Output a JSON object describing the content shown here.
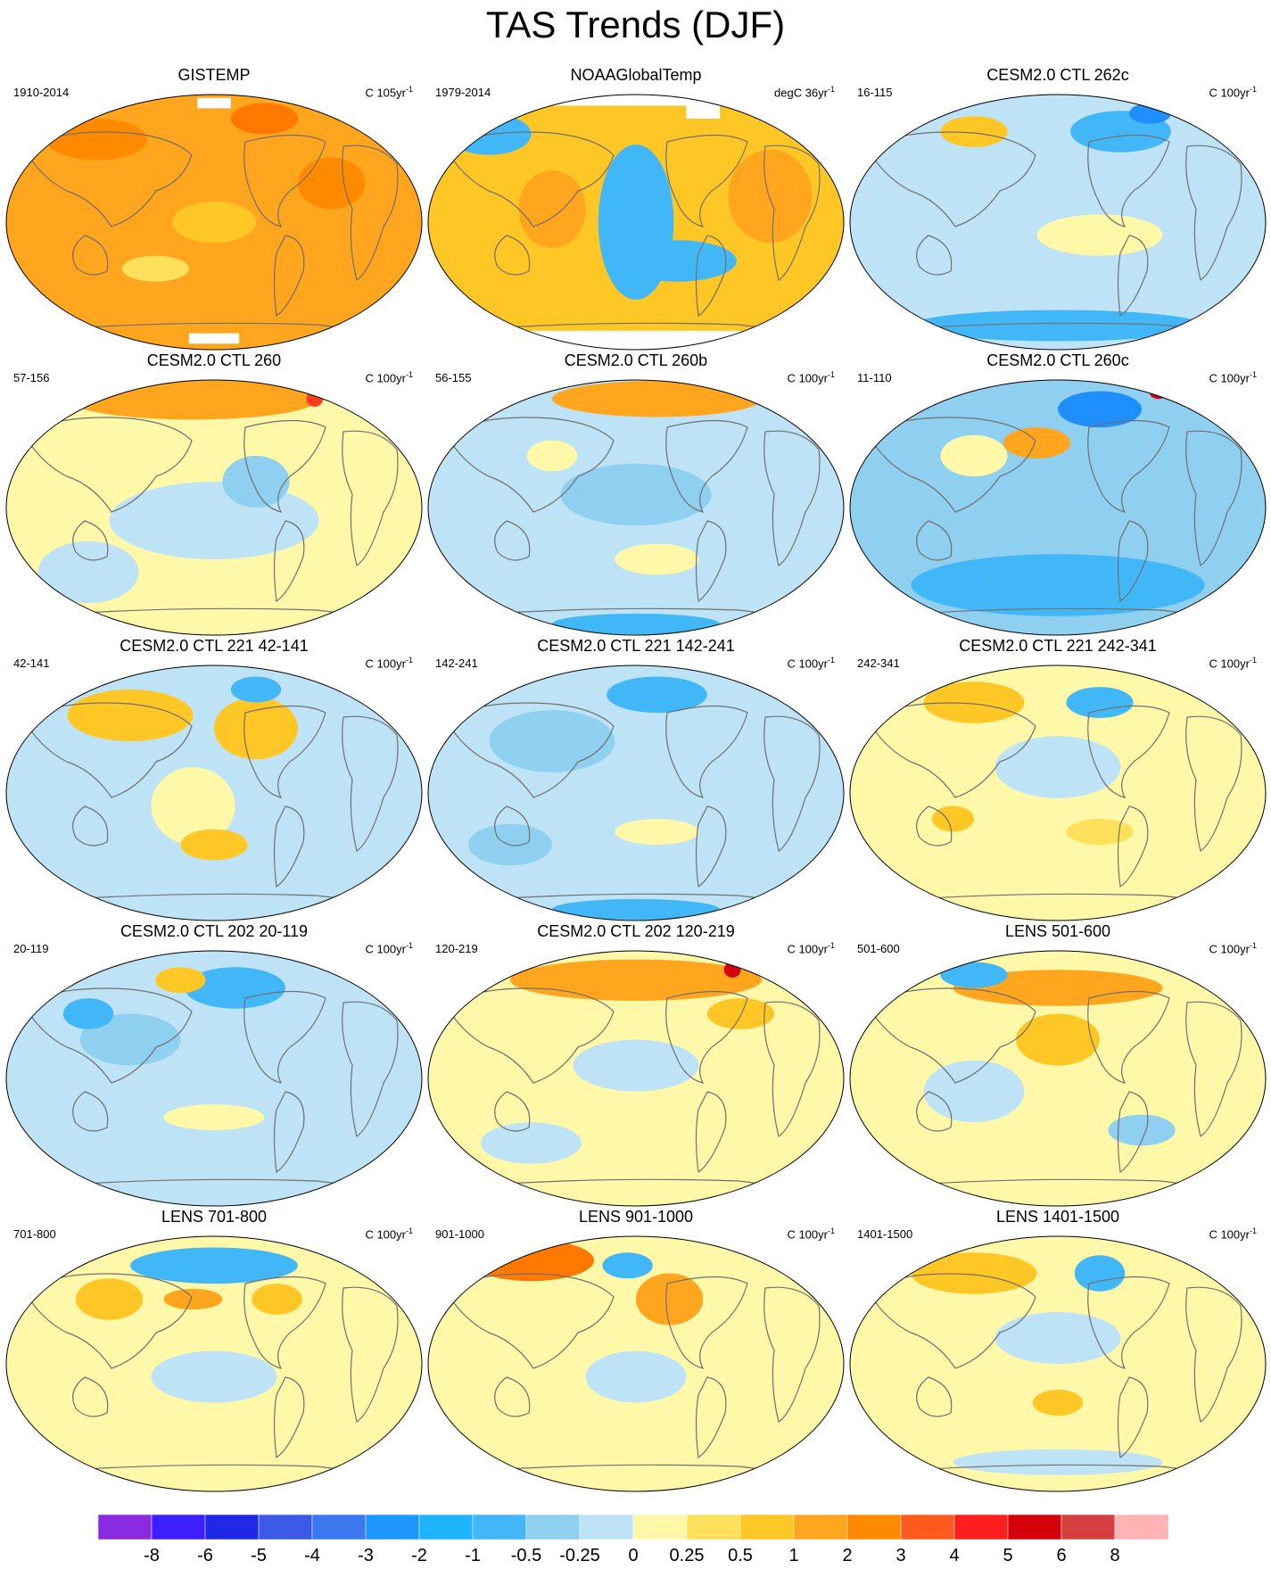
{
  "title": "TAS Trends (DJF)",
  "panels": [
    {
      "title": "GISTEMP",
      "years": "1910-2014",
      "units": "C 105yr",
      "exp": "-1",
      "fill": "#FFA51E",
      "blobs": [
        [
          "#FF8A00",
          0.22,
          0.18,
          0.12,
          0.08
        ],
        [
          "#FF7800",
          0.62,
          0.1,
          0.08,
          0.06
        ],
        [
          "#FFC726",
          0.5,
          0.5,
          0.1,
          0.08
        ],
        [
          "#FF8A00",
          0.78,
          0.35,
          0.08,
          0.1
        ],
        [
          "#FFE05A",
          0.36,
          0.68,
          0.08,
          0.05
        ]
      ],
      "masks": [
        [
          0.46,
          0.02,
          0.08,
          0.04
        ],
        [
          0.44,
          0.93,
          0.12,
          0.04
        ]
      ]
    },
    {
      "title": "NOAAGlobalTemp",
      "years": "1979-2014",
      "units": "degC 36yr",
      "exp": "-1",
      "fill": "#FFC726",
      "blobs": [
        [
          "#42B7F7",
          0.5,
          0.5,
          0.09,
          0.3
        ],
        [
          "#42B7F7",
          0.6,
          0.65,
          0.14,
          0.08
        ],
        [
          "#42B7F7",
          0.15,
          0.16,
          0.1,
          0.08
        ],
        [
          "#FFA51E",
          0.82,
          0.4,
          0.1,
          0.18
        ],
        [
          "#FFA51E",
          0.3,
          0.45,
          0.08,
          0.15
        ]
      ],
      "masks": [
        [
          0.3,
          0.0,
          0.4,
          0.05
        ],
        [
          0.25,
          0.92,
          0.5,
          0.08
        ],
        [
          0.62,
          0.04,
          0.08,
          0.06
        ]
      ]
    },
    {
      "title": "CESM2.0 CTL 262c",
      "years": "16-115",
      "units": "C 100yr",
      "exp": "-1",
      "fill": "#BFE3F6",
      "blobs": [
        [
          "#42B7F7",
          0.65,
          0.15,
          0.12,
          0.08
        ],
        [
          "#FFC726",
          0.3,
          0.15,
          0.08,
          0.06
        ],
        [
          "#FFF8A8",
          0.6,
          0.55,
          0.15,
          0.08
        ],
        [
          "#42B7F7",
          0.5,
          0.9,
          0.35,
          0.06
        ],
        [
          "#1F8FFF",
          0.72,
          0.08,
          0.05,
          0.04
        ]
      ],
      "masks": []
    },
    {
      "title": "CESM2.0 CTL 260",
      "years": "57-156",
      "units": "C 100yr",
      "exp": "-1",
      "fill": "#FFF8A8",
      "blobs": [
        [
          "#FFA51E",
          0.45,
          0.08,
          0.3,
          0.08
        ],
        [
          "#BFE3F6",
          0.5,
          0.55,
          0.25,
          0.15
        ],
        [
          "#BFE3F6",
          0.2,
          0.75,
          0.12,
          0.12
        ],
        [
          "#8FCFEF",
          0.6,
          0.4,
          0.08,
          0.1
        ],
        [
          "#FF3C1E",
          0.74,
          0.08,
          0.02,
          0.03
        ]
      ],
      "masks": []
    },
    {
      "title": "CESM2.0 CTL 260b",
      "years": "56-155",
      "units": "C 100yr",
      "exp": "-1",
      "fill": "#BFE3F6",
      "blobs": [
        [
          "#FFA51E",
          0.55,
          0.08,
          0.25,
          0.07
        ],
        [
          "#8FCFEF",
          0.5,
          0.45,
          0.18,
          0.12
        ],
        [
          "#FFF8A8",
          0.55,
          0.7,
          0.1,
          0.06
        ],
        [
          "#42B7F7",
          0.5,
          0.95,
          0.2,
          0.04
        ],
        [
          "#FFF8A8",
          0.3,
          0.3,
          0.06,
          0.06
        ]
      ],
      "masks": []
    },
    {
      "title": "CESM2.0 CTL 260c",
      "years": "11-110",
      "units": "C 100yr",
      "exp": "-1",
      "fill": "#8FCFEF",
      "blobs": [
        [
          "#FFA51E",
          0.45,
          0.25,
          0.08,
          0.06
        ],
        [
          "#42B7F7",
          0.5,
          0.8,
          0.35,
          0.12
        ],
        [
          "#FFF8A8",
          0.3,
          0.3,
          0.08,
          0.08
        ],
        [
          "#1F8FFF",
          0.6,
          0.12,
          0.1,
          0.07
        ],
        [
          "#D4000A",
          0.74,
          0.06,
          0.02,
          0.02
        ]
      ],
      "masks": []
    },
    {
      "title": "CESM2.0 CTL 221 42-141",
      "years": "42-141",
      "units": "C 100yr",
      "exp": "-1",
      "fill": "#BFE3F6",
      "blobs": [
        [
          "#FFC726",
          0.3,
          0.2,
          0.15,
          0.1
        ],
        [
          "#FFC726",
          0.6,
          0.25,
          0.1,
          0.12
        ],
        [
          "#FFF8A8",
          0.45,
          0.55,
          0.1,
          0.15
        ],
        [
          "#FFC726",
          0.5,
          0.7,
          0.08,
          0.06
        ],
        [
          "#42B7F7",
          0.6,
          0.1,
          0.06,
          0.05
        ]
      ],
      "masks": []
    },
    {
      "title": "CESM2.0 CTL 221 142-241",
      "years": "142-241",
      "units": "C 100yr",
      "exp": "-1",
      "fill": "#BFE3F6",
      "blobs": [
        [
          "#8FCFEF",
          0.3,
          0.3,
          0.15,
          0.12
        ],
        [
          "#42B7F7",
          0.55,
          0.12,
          0.12,
          0.07
        ],
        [
          "#FFF8A8",
          0.55,
          0.65,
          0.1,
          0.05
        ],
        [
          "#8FCFEF",
          0.2,
          0.7,
          0.1,
          0.08
        ],
        [
          "#42B7F7",
          0.5,
          0.95,
          0.2,
          0.04
        ]
      ],
      "masks": []
    },
    {
      "title": "CESM2.0 CTL 221 242-341",
      "years": "242-341",
      "units": "C 100yr",
      "exp": "-1",
      "fill": "#FFF8A8",
      "blobs": [
        [
          "#FFC726",
          0.3,
          0.15,
          0.12,
          0.08
        ],
        [
          "#BFE3F6",
          0.5,
          0.4,
          0.15,
          0.12
        ],
        [
          "#42B7F7",
          0.6,
          0.15,
          0.08,
          0.06
        ],
        [
          "#FFC726",
          0.25,
          0.6,
          0.05,
          0.05
        ],
        [
          "#FFE05A",
          0.6,
          0.65,
          0.08,
          0.05
        ]
      ],
      "masks": []
    },
    {
      "title": "CESM2.0 CTL 202 20-119",
      "years": "20-119",
      "units": "C 100yr",
      "exp": "-1",
      "fill": "#BFE3F6",
      "blobs": [
        [
          "#42B7F7",
          0.55,
          0.15,
          0.12,
          0.08
        ],
        [
          "#FFC726",
          0.42,
          0.12,
          0.06,
          0.05
        ],
        [
          "#8FCFEF",
          0.3,
          0.35,
          0.12,
          0.1
        ],
        [
          "#FFF8A8",
          0.5,
          0.65,
          0.12,
          0.05
        ],
        [
          "#42B7F7",
          0.2,
          0.25,
          0.06,
          0.06
        ]
      ],
      "masks": []
    },
    {
      "title": "CESM2.0 CTL 202 120-219",
      "years": "120-219",
      "units": "C 100yr",
      "exp": "-1",
      "fill": "#FFF8A8",
      "blobs": [
        [
          "#FFA51E",
          0.5,
          0.12,
          0.3,
          0.08
        ],
        [
          "#D4000A",
          0.73,
          0.08,
          0.02,
          0.03
        ],
        [
          "#BFE3F6",
          0.5,
          0.45,
          0.15,
          0.1
        ],
        [
          "#BFE3F6",
          0.25,
          0.75,
          0.12,
          0.08
        ],
        [
          "#FFC726",
          0.75,
          0.25,
          0.08,
          0.06
        ]
      ],
      "masks": []
    },
    {
      "title": "LENS 501-600",
      "years": "501-600",
      "units": "C 100yr",
      "exp": "-1",
      "fill": "#FFF8A8",
      "blobs": [
        [
          "#FFA51E",
          0.5,
          0.15,
          0.25,
          0.07
        ],
        [
          "#FFC726",
          0.5,
          0.35,
          0.1,
          0.1
        ],
        [
          "#BFE3F6",
          0.3,
          0.55,
          0.12,
          0.12
        ],
        [
          "#42B7F7",
          0.3,
          0.1,
          0.08,
          0.05
        ],
        [
          "#8FCFEF",
          0.7,
          0.7,
          0.08,
          0.06
        ]
      ],
      "masks": []
    },
    {
      "title": "LENS 701-800",
      "years": "701-800",
      "units": "C 100yr",
      "exp": "-1",
      "fill": "#FFF8A8",
      "blobs": [
        [
          "#42B7F7",
          0.5,
          0.12,
          0.2,
          0.07
        ],
        [
          "#FFA51E",
          0.45,
          0.25,
          0.07,
          0.04
        ],
        [
          "#FFC726",
          0.25,
          0.25,
          0.08,
          0.08
        ],
        [
          "#BFE3F6",
          0.5,
          0.55,
          0.15,
          0.1
        ],
        [
          "#FFC726",
          0.65,
          0.25,
          0.06,
          0.06
        ]
      ],
      "masks": []
    },
    {
      "title": "LENS 901-1000",
      "years": "901-1000",
      "units": "C 100yr",
      "exp": "-1",
      "fill": "#FFF8A8",
      "blobs": [
        [
          "#FF7800",
          0.25,
          0.1,
          0.15,
          0.08
        ],
        [
          "#FF3C1E",
          0.18,
          0.06,
          0.06,
          0.04
        ],
        [
          "#FFA51E",
          0.58,
          0.25,
          0.08,
          0.1
        ],
        [
          "#42B7F7",
          0.48,
          0.12,
          0.06,
          0.05
        ],
        [
          "#BFE3F6",
          0.5,
          0.55,
          0.12,
          0.1
        ]
      ],
      "masks": []
    },
    {
      "title": "LENS 1401-1500",
      "years": "1401-1500",
      "units": "C 100yr",
      "exp": "-1",
      "fill": "#FFF8A8",
      "blobs": [
        [
          "#FFC726",
          0.3,
          0.15,
          0.15,
          0.08
        ],
        [
          "#42B7F7",
          0.6,
          0.15,
          0.06,
          0.07
        ],
        [
          "#BFE3F6",
          0.5,
          0.4,
          0.15,
          0.1
        ],
        [
          "#FFC726",
          0.5,
          0.65,
          0.06,
          0.05
        ],
        [
          "#BFE3F6",
          0.5,
          0.88,
          0.25,
          0.05
        ]
      ],
      "masks": []
    }
  ],
  "colorbar": {
    "colors": [
      "#8A2BE2",
      "#3C1EFF",
      "#1E28E6",
      "#3C5AE6",
      "#3C78F0",
      "#1E96FF",
      "#1EB4FF",
      "#42B7F7",
      "#8FCFEF",
      "#BFE3F6",
      "#FFF8A8",
      "#FFE05A",
      "#FFC726",
      "#FFA51E",
      "#FF8A00",
      "#FF5A1E",
      "#FF1E1E",
      "#D4000A",
      "#D44040",
      "#FFB4B4"
    ],
    "labels": [
      "-8",
      "-6",
      "-5",
      "-4",
      "-3",
      "-2",
      "-1",
      "-0.5",
      "-0.25",
      "0",
      "0.25",
      "0.5",
      "1",
      "2",
      "3",
      "4",
      "5",
      "6",
      "8"
    ]
  }
}
